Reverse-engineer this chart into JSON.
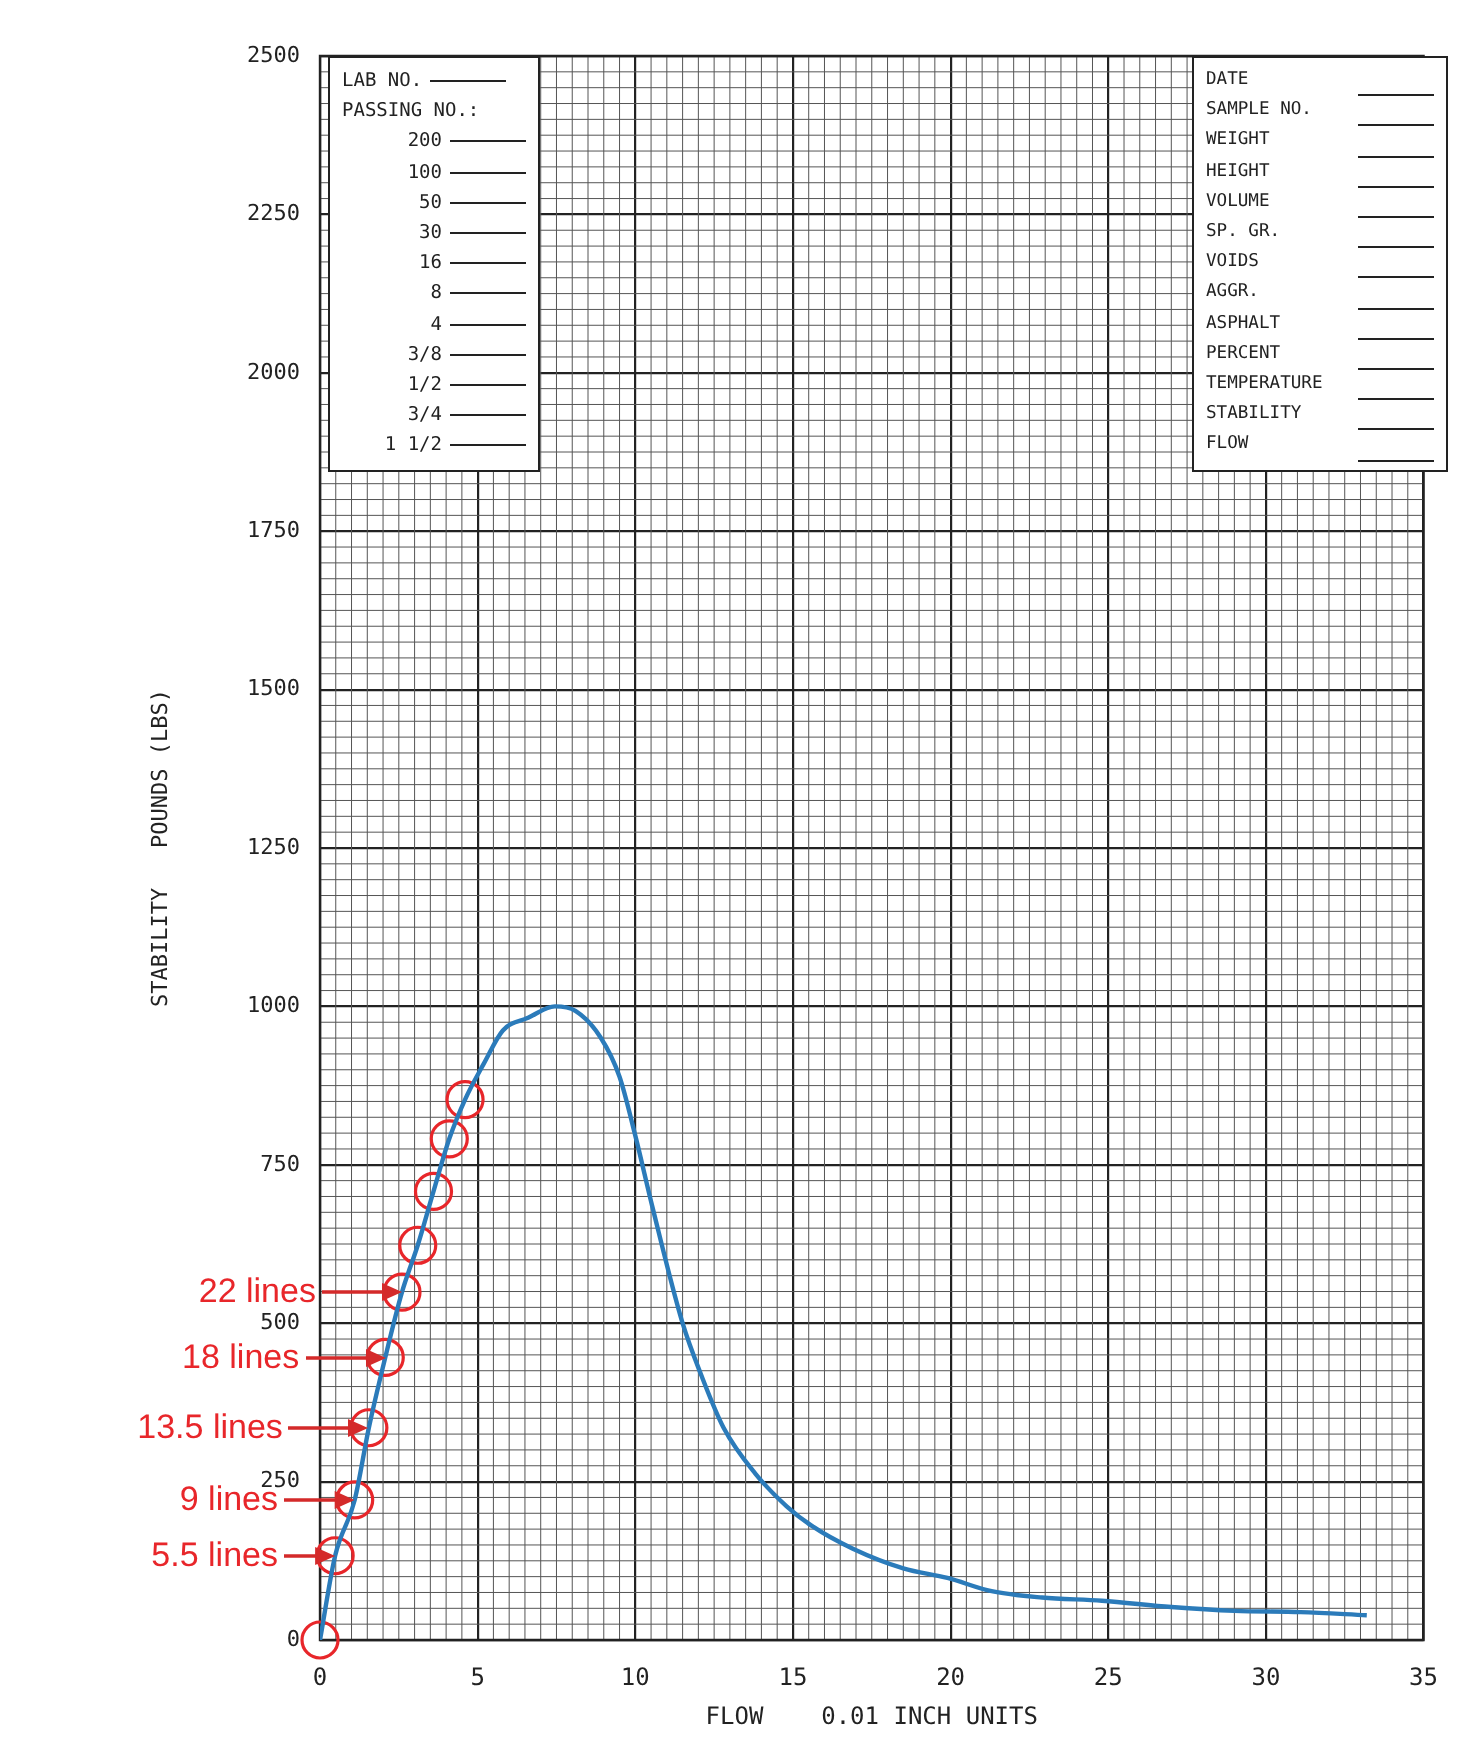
{
  "chart_data": {
    "type": "line",
    "xlabel": "FLOW    0.01 INCH UNITS",
    "ylabel": "STABILITY   POUNDS (LBS)",
    "xlim": [
      0,
      35
    ],
    "xticks": [
      0,
      5,
      10,
      15,
      20,
      25,
      30,
      35
    ],
    "ylim": [
      0,
      2500
    ],
    "yticks": [
      0,
      250,
      500,
      750,
      1000,
      1250,
      1500,
      1750,
      2000,
      2250,
      2500
    ],
    "grid": true,
    "legend": false,
    "marker": "none",
    "line_style": "solid",
    "series": [
      {
        "type": "line",
        "color": "#2b7bba",
        "x": [
          0,
          0.48,
          1.1,
          1.55,
          2.07,
          2.6,
          3.1,
          3.6,
          4.1,
          4.6,
          5.2,
          5.8,
          6.6,
          7.45,
          8.1,
          8.9,
          9.5,
          10.0,
          10.55,
          11.5,
          12.1,
          12.8,
          13.8,
          14.8,
          15.6,
          16.9,
          18.5,
          19.9,
          21.3,
          22.9,
          24.8,
          27,
          29,
          31.1,
          33.2
        ],
        "values": [
          0,
          133,
          221,
          335,
          446,
          549,
          623,
          708,
          791,
          853,
          910,
          962,
          982,
          1000,
          993,
          951,
          889,
          796,
          682,
          500,
          417,
          335,
          263,
          211,
          180,
          144,
          113,
          98,
          77,
          67,
          62,
          52,
          46,
          44,
          39
        ]
      },
      {
        "type": "scatter",
        "color": "#e8262a",
        "marker": "circle",
        "x": [
          0,
          0.48,
          1.1,
          1.55,
          2.07,
          2.6,
          3.1,
          3.6,
          4.1,
          4.6
        ],
        "values": [
          0,
          133,
          221,
          335,
          446,
          549,
          623,
          708,
          791,
          853
        ]
      }
    ],
    "annotations": [
      {
        "text": "5.5 lines",
        "x": 0.48,
        "y": 133
      },
      {
        "text": "9 lines",
        "x": 1.1,
        "y": 221
      },
      {
        "text": "13.5 lines",
        "x": 1.55,
        "y": 335
      },
      {
        "text": "18 lines",
        "x": 2.07,
        "y": 446
      },
      {
        "text": "22 lines",
        "x": 2.6,
        "y": 549
      },
      "LAB NO.",
      "PASSING NO.:",
      "200",
      "100",
      "50",
      "30",
      "16",
      "8",
      "4",
      "3/8",
      "1/2",
      "3/4",
      "1 1/2",
      "DATE",
      "SAMPLE NO.",
      "WEIGHT",
      "HEIGHT",
      "VOLUME",
      "SP. GR.",
      "VOIDS",
      "AGGR.",
      "ASPHALT",
      "PERCENT",
      "TEMPERATURE",
      "STABILITY",
      "FLOW"
    ]
  }
}
